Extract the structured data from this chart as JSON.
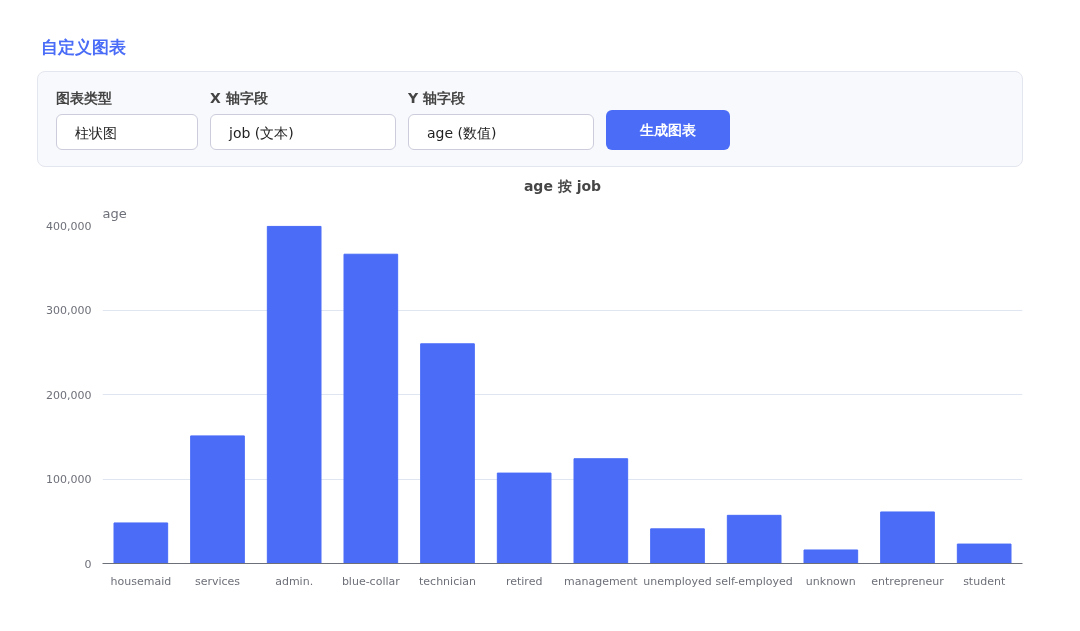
{
  "chart_data": {
    "type": "bar",
    "title": "age 按 job",
    "ylabel": "age",
    "categories": [
      "housemaid",
      "services",
      "admin.",
      "blue-collar",
      "technician",
      "retired",
      "management",
      "unemployed",
      "self-employed",
      "unknown",
      "entrepreneur",
      "student"
    ],
    "values": [
      48000,
      151000,
      399000,
      366000,
      260000,
      107000,
      124000,
      41000,
      57000,
      16000,
      61000,
      23000
    ],
    "color": "#4a6cf7",
    "ylim": [
      0,
      400000
    ],
    "yticks": [
      0,
      {
        "value": 100000,
        "label": "100,000"
      },
      {
        "value": 200000,
        "label": "200,000"
      },
      {
        "value": 300000,
        "label": "300,000"
      },
      {
        "value": 400000,
        "label": "400,000"
      }
    ],
    "grid": "y",
    "annotations": [
      "自定义图表",
      "图表类型",
      "柱状图",
      "X 轴字段",
      "job (文本)",
      "Y 轴字段",
      "age (数值)",
      "生成图表"
    ]
  }
}
